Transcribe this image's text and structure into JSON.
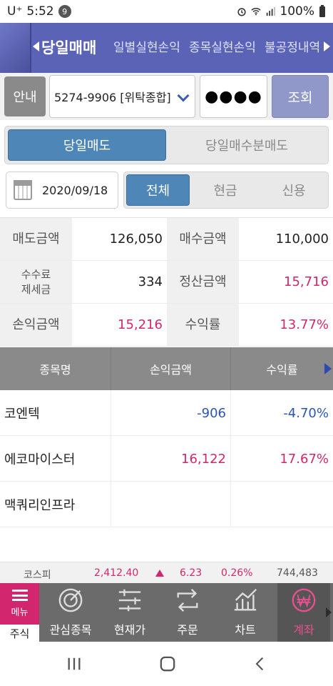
{
  "status_bar": {
    "carrier": "U⁺",
    "time": "5:52",
    "notification_count": "9",
    "battery": "100%"
  },
  "top_tabs": [
    {
      "label": "당일매매",
      "active": true
    },
    {
      "label": "일별실현손익",
      "active": false
    },
    {
      "label": "종목실현손익",
      "active": false
    },
    {
      "label": "불공정내역",
      "active": false
    }
  ],
  "account": {
    "guide_label": "안내",
    "account_value": "5274-9906 [위탁종합]",
    "password_value": "●●●●",
    "query_label": "조회"
  },
  "segment": {
    "options": [
      "당일매도",
      "당일매수분매도"
    ],
    "selected": "당일매도"
  },
  "date": {
    "value": "2020/09/18"
  },
  "filter": {
    "options": [
      "전체",
      "현금",
      "신용"
    ],
    "selected": "전체"
  },
  "summary": {
    "sell_amount_label": "매도금액",
    "sell_amount": "126,050",
    "buy_amount_label": "매수금액",
    "buy_amount": "110,000",
    "fee_tax_label_1": "수수료",
    "fee_tax_label_2": "제세금",
    "fee_tax": "334",
    "settle_amount_label": "정산금액",
    "settle_amount": "15,716",
    "pl_amount_label": "손익금액",
    "pl_amount": "15,216",
    "return_rate_label": "수익률",
    "return_rate": "13.77%"
  },
  "table": {
    "headers": [
      "종목명",
      "손익금액",
      "수익률"
    ],
    "rows": [
      {
        "name": "코엔텍",
        "pl": "-906",
        "rate": "-4.70%"
      },
      {
        "name": "에코마이스터",
        "pl": "16,122",
        "rate": "17.67%"
      },
      {
        "name": "맥쿼리인프라",
        "pl": "",
        "rate": ""
      }
    ]
  },
  "ticker": {
    "index_name": "코스피",
    "index_value": "2,412.40",
    "change": "6.23",
    "change_pct": "0.26%",
    "volume": "744,483"
  },
  "bottom_nav": {
    "menu_label": "메뉴",
    "stock_label": "주식",
    "items": [
      {
        "label": "관심종목",
        "icon": "watchlist-icon"
      },
      {
        "label": "현재가",
        "icon": "current-price-icon"
      },
      {
        "label": "주문",
        "icon": "order-icon"
      },
      {
        "label": "차트",
        "icon": "chart-icon"
      },
      {
        "label": "계좌",
        "icon": "account-won-icon",
        "active": true
      }
    ]
  },
  "colors": {
    "primary_blue": "#4f86b8",
    "header_purple": "#5b63b6",
    "accent_red": "#d2266e",
    "negative_blue": "#2b55b3"
  }
}
